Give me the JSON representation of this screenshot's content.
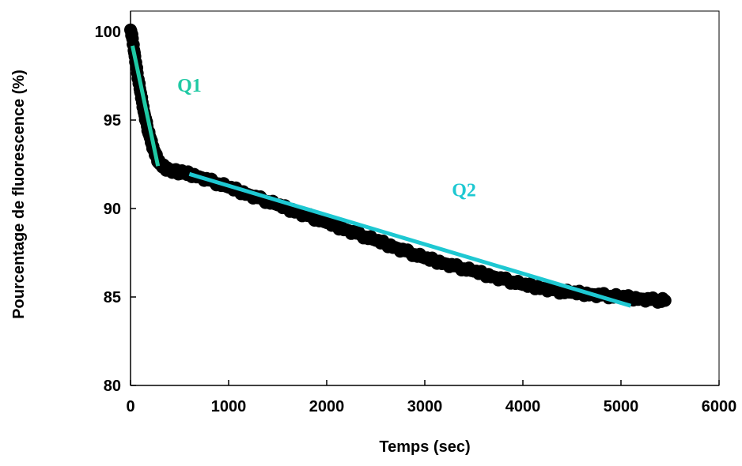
{
  "chart_data": {
    "type": "scatter",
    "title": "",
    "xlabel": "Temps (sec)",
    "ylabel": "Pourcentage de fluorescence (%)",
    "xlim": [
      0,
      6000
    ],
    "ylim": [
      80,
      100
    ],
    "x_ticks": [
      0,
      1000,
      2000,
      3000,
      4000,
      5000,
      6000
    ],
    "y_ticks": [
      80,
      85,
      90,
      95,
      100
    ],
    "grid": false,
    "legend": "none",
    "marker_color": "#000000",
    "series": [
      {
        "points": [
          [
            0,
            100.1
          ],
          [
            20,
            99.6
          ],
          [
            40,
            98.8
          ],
          [
            60,
            98.0
          ],
          [
            80,
            97.3
          ],
          [
            100,
            96.6
          ],
          [
            120,
            96.0
          ],
          [
            140,
            95.4
          ],
          [
            160,
            94.9
          ],
          [
            180,
            94.4
          ],
          [
            200,
            94.0
          ],
          [
            220,
            93.6
          ],
          [
            240,
            93.3
          ],
          [
            260,
            93.0
          ],
          [
            280,
            92.7
          ],
          [
            300,
            92.5
          ],
          [
            350,
            92.3
          ],
          [
            400,
            92.2
          ],
          [
            450,
            92.1
          ],
          [
            500,
            92.05
          ],
          [
            550,
            92.0
          ],
          [
            600,
            91.95
          ],
          [
            700,
            91.8
          ],
          [
            800,
            91.6
          ],
          [
            900,
            91.4
          ],
          [
            1000,
            91.2
          ],
          [
            1100,
            91.0
          ],
          [
            1200,
            90.8
          ],
          [
            1300,
            90.6
          ],
          [
            1400,
            90.4
          ],
          [
            1500,
            90.2
          ],
          [
            1600,
            90.0
          ],
          [
            1700,
            89.8
          ],
          [
            1800,
            89.6
          ],
          [
            1900,
            89.4
          ],
          [
            2000,
            89.2
          ],
          [
            2100,
            89.0
          ],
          [
            2200,
            88.8
          ],
          [
            2300,
            88.6
          ],
          [
            2400,
            88.4
          ],
          [
            2500,
            88.2
          ],
          [
            2600,
            88.0
          ],
          [
            2700,
            87.8
          ],
          [
            2800,
            87.6
          ],
          [
            2900,
            87.4
          ],
          [
            3000,
            87.2
          ],
          [
            3100,
            87.05
          ],
          [
            3200,
            86.9
          ],
          [
            3300,
            86.75
          ],
          [
            3400,
            86.6
          ],
          [
            3500,
            86.45
          ],
          [
            3600,
            86.3
          ],
          [
            3700,
            86.15
          ],
          [
            3800,
            86.0
          ],
          [
            3900,
            85.85
          ],
          [
            4000,
            85.7
          ],
          [
            4100,
            85.6
          ],
          [
            4200,
            85.5
          ],
          [
            4300,
            85.4
          ],
          [
            4400,
            85.3
          ],
          [
            4500,
            85.25
          ],
          [
            4600,
            85.2
          ],
          [
            4700,
            85.15
          ],
          [
            4800,
            85.1
          ],
          [
            4900,
            85.05
          ],
          [
            5000,
            85.0
          ],
          [
            5100,
            84.95
          ],
          [
            5200,
            84.9
          ],
          [
            5300,
            84.85
          ],
          [
            5400,
            84.8
          ],
          [
            5450,
            84.8
          ]
        ]
      }
    ],
    "fit_lines": [
      {
        "label": "Q1",
        "color": "#1fc9a4",
        "x": [
          20,
          280
        ],
        "y": [
          99.2,
          92.4
        ]
      },
      {
        "label": "Q2",
        "color": "#1ec8d2",
        "x": [
          600,
          5100
        ],
        "y": [
          91.95,
          84.5
        ]
      }
    ],
    "annotations": [
      {
        "text": "Q1",
        "color": "#1fc9a4",
        "x": 600,
        "y": 96.6
      },
      {
        "text": "Q2",
        "color": "#1ec8d2",
        "x": 3400,
        "y": 90.7
      }
    ]
  }
}
